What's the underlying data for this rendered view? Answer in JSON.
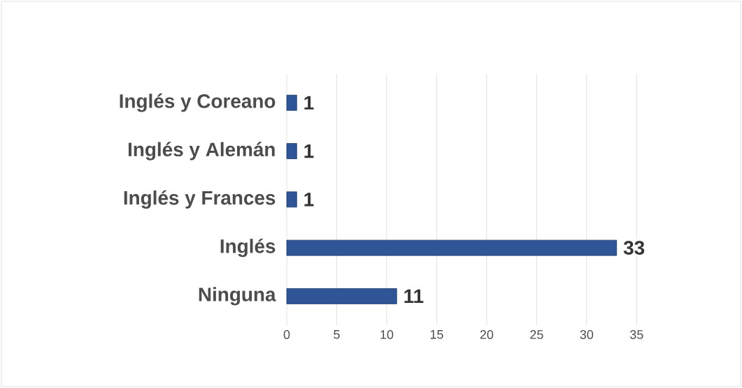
{
  "chart_data": {
    "type": "bar",
    "orientation": "horizontal",
    "categories": [
      "Inglés y Coreano",
      "Inglés y Alemán",
      "Inglés y Frances",
      "Inglés",
      "Ninguna"
    ],
    "values": [
      1,
      1,
      1,
      33,
      11
    ],
    "color": "#2f5597",
    "xlim": [
      0,
      35
    ],
    "xticks": [
      0,
      5,
      10,
      15,
      20,
      25,
      30,
      35
    ],
    "grid": "x",
    "data_labels": true
  }
}
